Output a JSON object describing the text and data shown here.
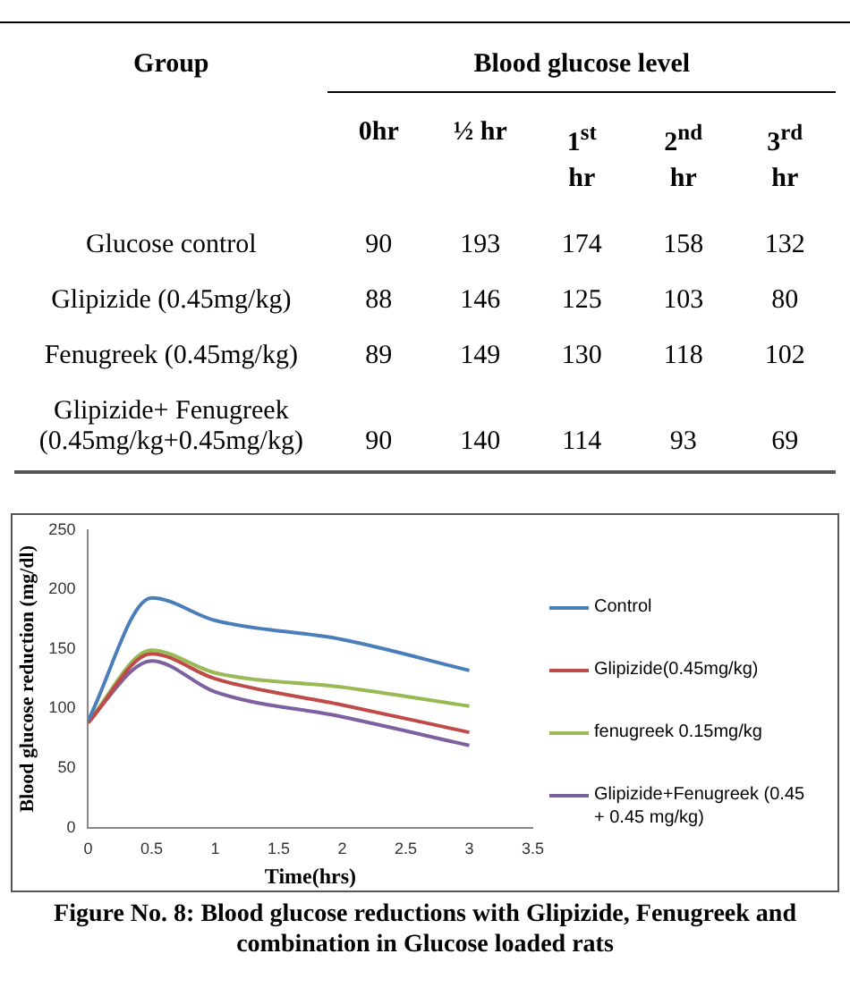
{
  "chart_data": [
    {
      "type": "other",
      "ylabel": "Group",
      "xlabel": "Blood glucose level",
      "categories": [
        "0hr",
        "½ hr",
        "1$^{st}$ hr",
        "2$^{nd}$ hr",
        "3$^{rd}$ hr"
      ],
      "data_labels": true,
      "series": [
        {
          "name": "Glucose control",
          "values": [
            90,
            193,
            174,
            158,
            132
          ]
        },
        {
          "name": "Glipizide (0.45mg/kg)",
          "values": [
            88,
            146,
            125,
            103,
            80
          ]
        },
        {
          "name": "Fenugreek (0.45mg/kg)",
          "values": [
            89,
            149,
            130,
            118,
            102
          ]
        },
        {
          "name": "Glipizide+ Fenugreek (0.45mg/kg+0.45mg/kg)",
          "values": [
            90,
            140,
            114,
            93,
            69
          ]
        }
      ]
    },
    {
      "type": "line",
      "x": [
        0,
        0.5,
        1,
        2,
        3
      ],
      "xlim": [
        0,
        3.5
      ],
      "xticks": [
        0,
        0.5,
        1,
        1.5,
        2,
        2.5,
        3,
        3.5
      ],
      "ylim": [
        0,
        250
      ],
      "yticks": [
        0,
        50,
        100,
        150,
        200,
        250
      ],
      "xlabel": "Time(hrs)",
      "ylabel": "Blood glucose reduction (mg/dl)",
      "legend": "right",
      "marker": "none",
      "annotations": [
        "Figure No. 8:  Blood glucose reductions with Glipizide, Fenugreek and combination in Glucose loaded rats"
      ],
      "series": [
        {
          "name": "Control",
          "color": "#4a7ebb",
          "values": [
            90,
            193,
            174,
            158,
            132
          ]
        },
        {
          "name": "Glipizide(0.45mg/kg)",
          "color": "#be4b48",
          "values": [
            88,
            146,
            125,
            103,
            80
          ]
        },
        {
          "name": "fenugreek 0.15mg/kg",
          "color": "#98b954",
          "values": [
            89,
            149,
            130,
            118,
            102
          ]
        },
        {
          "name": "Glipizide+Fenugreek (0.45 + 0.45 mg/kg)",
          "color": "#7d60a0",
          "values": [
            90,
            140,
            114,
            93,
            69
          ]
        }
      ]
    }
  ]
}
